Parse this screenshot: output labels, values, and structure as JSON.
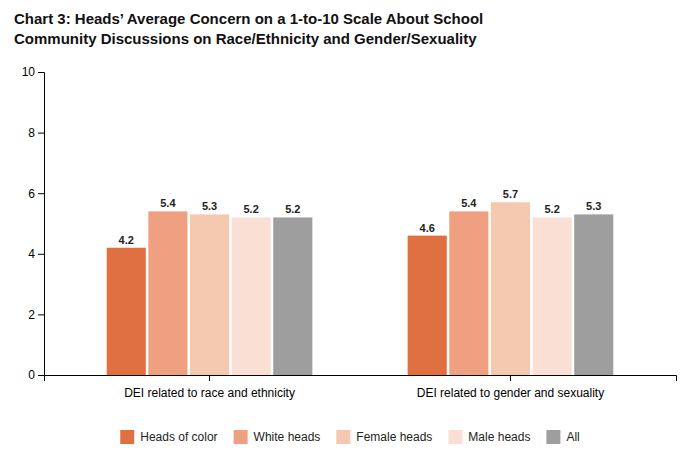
{
  "chart_data": {
    "type": "bar",
    "title": "Chart 3: Heads’ Average Concern on a 1-to-10 Scale About School",
    "subtitle": "Community Discussions on Race/Ethnicity and Gender/Sexuality",
    "categories": [
      "DEI related to race and ethnicity",
      "DEI related to gender and sexuality"
    ],
    "series": [
      {
        "name": "Heads of color",
        "values": [
          4.2,
          4.6
        ],
        "color": "#E07040"
      },
      {
        "name": "White heads",
        "values": [
          5.4,
          5.4
        ],
        "color": "#EFA080"
      },
      {
        "name": "Female heads",
        "values": [
          5.3,
          5.7
        ],
        "color": "#F5C8B0"
      },
      {
        "name": "Male heads",
        "values": [
          5.2,
          5.2
        ],
        "color": "#FAE0D4"
      },
      {
        "name": "All",
        "values": [
          5.2,
          5.3
        ],
        "color": "#9E9E9E"
      }
    ],
    "ylim": [
      0,
      10
    ],
    "yticks": [
      0,
      2,
      4,
      6,
      8,
      10
    ],
    "grid": false,
    "legend": "bottom",
    "data_labels": true
  }
}
